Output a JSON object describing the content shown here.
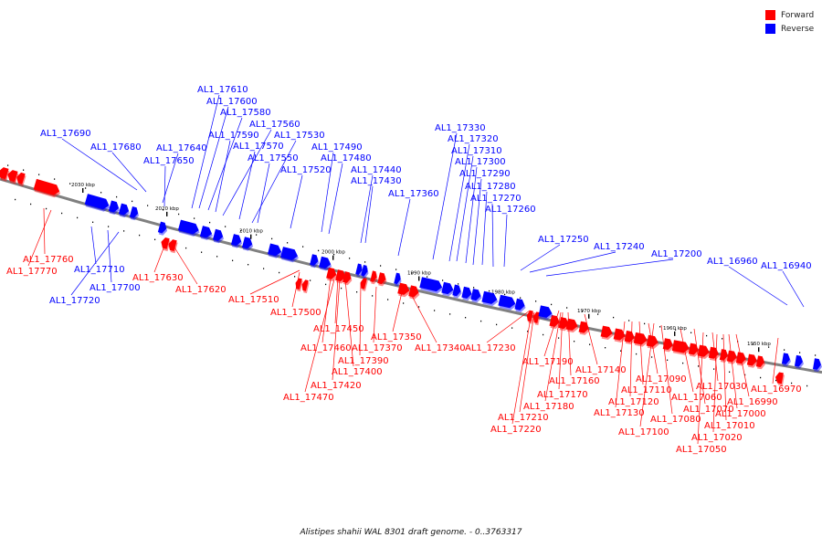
{
  "legend": {
    "forward_label": "Forward",
    "reverse_label": "Reverse",
    "forward_color": "#ff0000",
    "reverse_color": "#0000ff"
  },
  "caption": "Alistipes shahii WAL 8301 draft genome. - 0..3763317",
  "colors": {
    "backbone": "#808080",
    "forward": "#ff0000",
    "reverse": "#0000ff",
    "ticks": "#000000"
  },
  "kbp_labels": [
    "2030 kbp",
    "2020 kbp",
    "2010 kbp",
    "2000 kbp",
    "1990 kbp",
    "1980 kbp",
    "1970 kbp",
    "1960 kbp",
    "1950 kbp"
  ],
  "forward_genes": [
    "AL1_17760",
    "AL1_17770",
    "AL1_17630",
    "AL1_17620",
    "AL1_17510",
    "AL1_17500",
    "AL1_17450",
    "AL1_17460",
    "AL1_17370",
    "AL1_17390",
    "AL1_17350",
    "AL1_17340",
    "AL1_17400",
    "AL1_17420",
    "AL1_17470",
    "AL1_17230",
    "AL1_17190",
    "AL1_17160",
    "AL1_17140",
    "AL1_17170",
    "AL1_17090",
    "AL1_17110",
    "AL1_17180",
    "AL1_17120",
    "AL1_17130",
    "AL1_17210",
    "AL1_17220",
    "AL1_17080",
    "AL1_17100",
    "AL1_17060",
    "AL1_17070",
    "AL1_17030",
    "AL1_16970",
    "AL1_16990",
    "AL1_17000",
    "AL1_17010",
    "AL1_17020",
    "AL1_17050"
  ],
  "reverse_genes": [
    "AL1_17610",
    "AL1_17600",
    "AL1_17580",
    "AL1_17560",
    "AL1_17530",
    "AL1_17590",
    "AL1_17690",
    "AL1_17680",
    "AL1_17640",
    "AL1_17570",
    "AL1_17650",
    "AL1_17550",
    "AL1_17490",
    "AL1_17480",
    "AL1_17520",
    "AL1_17440",
    "AL1_17430",
    "AL1_17360",
    "AL1_17330",
    "AL1_17320",
    "AL1_17310",
    "AL1_17300",
    "AL1_17290",
    "AL1_17280",
    "AL1_17270",
    "AL1_17260",
    "AL1_17250",
    "AL1_17240",
    "AL1_17200",
    "AL1_16960",
    "AL1_16940",
    "AL1_17710",
    "AL1_17700",
    "AL1_17720"
  ]
}
